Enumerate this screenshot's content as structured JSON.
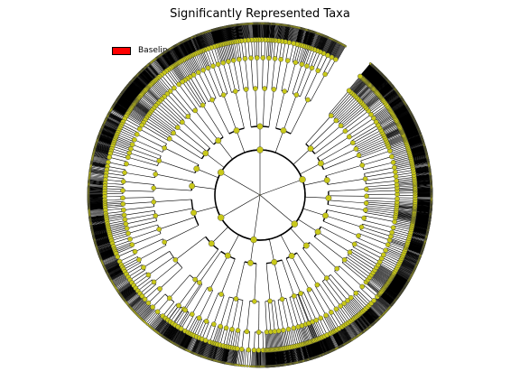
{
  "title": "Significantly Represented Taxa",
  "legend": {
    "label": "Baseline",
    "color": "#ff0000"
  },
  "colors": {
    "node": "#c8c819",
    "edge": "#000000",
    "background": "#ffffff"
  },
  "tree": {
    "levels": 6,
    "clades": [
      {
        "id": "A",
        "parent": null,
        "level": 1,
        "angle": 90,
        "leaves": 24
      },
      {
        "id": "B",
        "parent": null,
        "level": 1,
        "angle": 150,
        "leaves": 18
      },
      {
        "id": "C",
        "parent": null,
        "level": 1,
        "angle": 210,
        "leaves": 22
      },
      {
        "id": "D",
        "parent": null,
        "level": 1,
        "angle": 262,
        "leaves": 16
      },
      {
        "id": "E",
        "parent": null,
        "level": 1,
        "angle": 320,
        "leaves": 26
      },
      {
        "id": "F",
        "parent": null,
        "level": 1,
        "angle": 20,
        "leaves": 20
      }
    ]
  }
}
